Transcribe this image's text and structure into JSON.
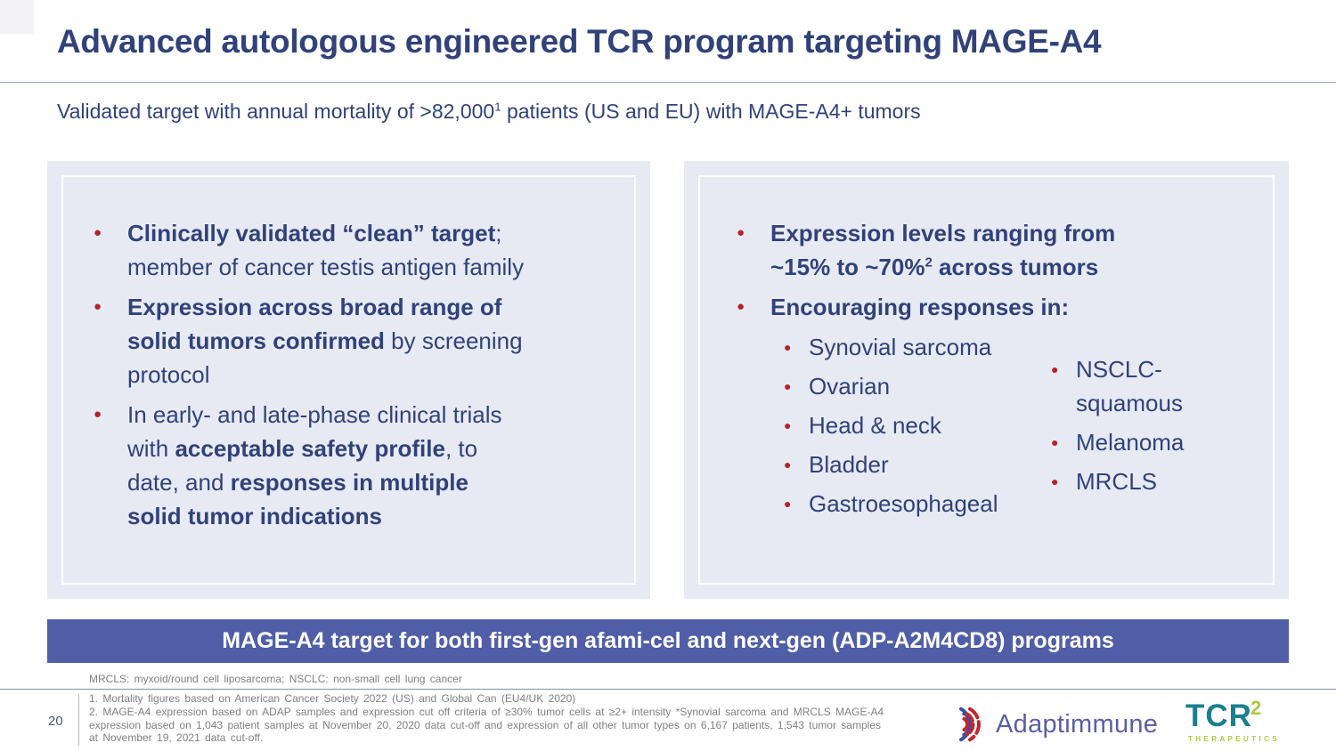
{
  "header": {
    "title": "Advanced autologous engineered TCR program targeting MAGE-A4",
    "subtitle_segments": [
      {
        "t": "Validated target with annual mortality of >82,000"
      },
      {
        "t": "1",
        "sup": true
      },
      {
        "t": " patients (US and EU) with MAGE-A4+ tumors"
      }
    ]
  },
  "left_panel": {
    "bullets": [
      {
        "segments": [
          {
            "t": "Clinically validated “clean” target",
            "b": true
          },
          {
            "t": ";\nmember of cancer testis antigen family"
          }
        ]
      },
      {
        "segments": [
          {
            "t": "Expression across broad range of\nsolid tumors confirmed",
            "b": true
          },
          {
            "t": " by screening\nprotocol"
          }
        ]
      },
      {
        "segments": [
          {
            "t": "In early- and late-phase clinical trials\nwith "
          },
          {
            "t": "acceptable safety profile",
            "b": true
          },
          {
            "t": ", to\ndate, and "
          },
          {
            "t": "responses in multiple\nsolid tumor indications",
            "b": true
          }
        ]
      }
    ]
  },
  "right_panel": {
    "bullets": [
      {
        "segments": [
          {
            "t": "Expression levels ranging from\n~15% to ~70%",
            "b": true
          },
          {
            "t": "2",
            "b": true,
            "sup": true
          },
          {
            "t": " across tumors",
            "b": true
          }
        ]
      },
      {
        "segments": [
          {
            "t": "Encouraging responses in:",
            "b": true
          }
        ]
      }
    ],
    "sub_col1": [
      "Synovial sarcoma",
      "Ovarian",
      "Head & neck",
      "Bladder",
      "Gastroesophageal"
    ],
    "sub_col2": [
      "NSCLC-squamous",
      "Melanoma",
      "MRCLS"
    ]
  },
  "banner": {
    "text": "MAGE-A4 target for both first-gen afami-cel and next-gen (ADP-A2M4CD8) programs"
  },
  "footnotes": {
    "abbreviations": "MRCLS: myxoid/round cell liposarcoma; NSCLC: non-small cell lung cancer",
    "note1": "1. Mortality figures based on American Cancer Society 2022 (US) and Global Can (EU4/UK 2020)",
    "note2": "2. MAGE-A4 expression based on ADAP samples and expression cut off criteria of ≥30% tumor cells at ≥2+ intensity *Synovial sarcoma and MRCLS MAGE-A4 expression based on 1,043 patient samples at November 20, 2020 data cut-off and expression of all other tumor types on 6,167 patients, 1,543 tumor samples at November 19, 2021 data cut-off."
  },
  "footer": {
    "page_number": "20"
  },
  "logos": {
    "adaptimmune": {
      "name": "Adaptimmune"
    },
    "tcr2": {
      "wordmark": "TCR",
      "superscript": "2",
      "tagline": "THERAPEUTICS"
    }
  },
  "colors": {
    "navy_text": "#31427A",
    "bullet_red": "#B52228",
    "panel_bg": "#E7EAF3",
    "banner_bg": "#4F5EA7",
    "footnote_gray": "#808080",
    "adaptimmune_purple": "#5B5EA6",
    "adaptimmune_blue": "#3D4FA1",
    "adaptimmune_red": "#C1272D",
    "tcr_teal": "#1B7F8E",
    "tcr_green": "#AFC83D"
  }
}
